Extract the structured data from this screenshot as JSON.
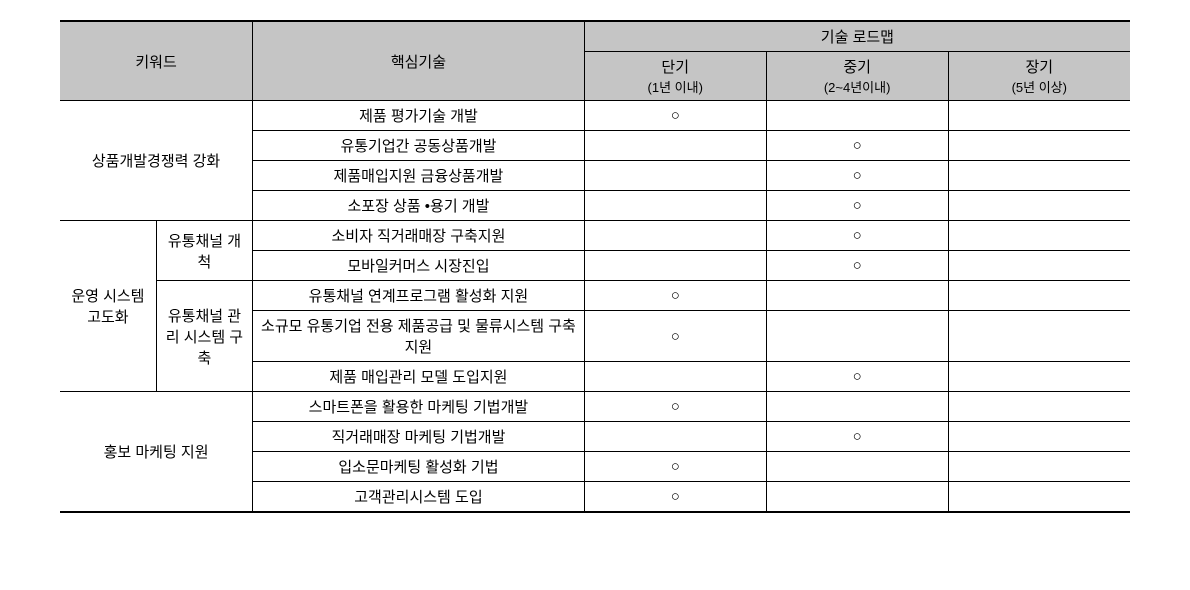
{
  "header": {
    "keyword": "키워드",
    "core_tech": "핵심기술",
    "roadmap": "기술 로드맵",
    "short_term": "단기",
    "short_term_sub": "(1년 이내)",
    "mid_term": "중기",
    "mid_term_sub": "(2~4년이내)",
    "long_term": "장기",
    "long_term_sub": "(5년 이상)"
  },
  "mark": "○",
  "groups": [
    {
      "keyword": "상품개발경쟁력 강화",
      "rows": [
        {
          "tech": "제품 평가기술 개발",
          "s": true,
          "m": false,
          "l": false
        },
        {
          "tech": "유통기업간 공동상품개발",
          "s": false,
          "m": true,
          "l": false
        },
        {
          "tech": "제품매입지원 금융상품개발",
          "s": false,
          "m": true,
          "l": false
        },
        {
          "tech": "소포장 상품 •용기 개발",
          "s": false,
          "m": true,
          "l": false
        }
      ]
    },
    {
      "keyword": "운영 시스템 고도화",
      "subgroups": [
        {
          "sub_keyword": "유통채널 개척",
          "rows": [
            {
              "tech": "소비자 직거래매장 구축지원",
              "s": false,
              "m": true,
              "l": false
            },
            {
              "tech": "모바일커머스 시장진입",
              "s": false,
              "m": true,
              "l": false
            }
          ]
        },
        {
          "sub_keyword": "유통채널 관리 시스템 구축",
          "rows": [
            {
              "tech": "유통채널 연계프로그램 활성화 지원",
              "s": true,
              "m": false,
              "l": false
            },
            {
              "tech": "소규모 유통기업 전용 제품공급 및 물류시스템 구축지원",
              "s": true,
              "m": false,
              "l": false
            },
            {
              "tech": "제품 매입관리 모델 도입지원",
              "s": false,
              "m": true,
              "l": false
            }
          ]
        }
      ]
    },
    {
      "keyword": "홍보 마케팅 지원",
      "rows": [
        {
          "tech": "스마트폰을 활용한 마케팅 기법개발",
          "s": true,
          "m": false,
          "l": false
        },
        {
          "tech": "직거래매장 마케팅 기법개발",
          "s": false,
          "m": true,
          "l": false
        },
        {
          "tech": "입소문마케팅 활성화 기법",
          "s": true,
          "m": false,
          "l": false
        },
        {
          "tech": "고객관리시스템 도입",
          "s": true,
          "m": false,
          "l": false
        }
      ]
    }
  ]
}
